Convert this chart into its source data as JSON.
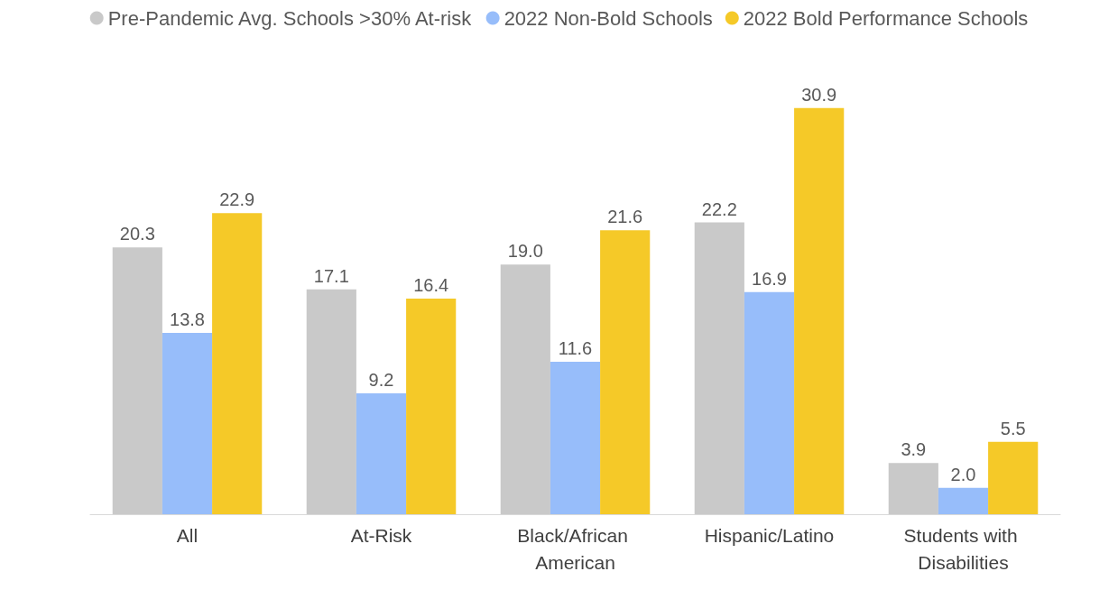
{
  "chart_data": {
    "type": "bar",
    "categories": [
      "All",
      "At-Risk",
      "Black/African American",
      "Hispanic/Latino",
      "Students with Disabilities"
    ],
    "series": [
      {
        "name": "Pre-Pandemic Avg. Schools >30% At-risk",
        "color": "#c9c9c9",
        "values": [
          20.3,
          17.1,
          19.0,
          22.2,
          3.9
        ],
        "value_labels": [
          "20.3",
          "17.1",
          "19.0",
          "22.2",
          "3.9"
        ]
      },
      {
        "name": "2022 Non-Bold Schools",
        "color": "#97bdfa",
        "values": [
          13.8,
          9.2,
          11.6,
          16.9,
          2.0
        ],
        "value_labels": [
          "13.8",
          "9.2",
          "11.6",
          "16.9",
          "2.0"
        ]
      },
      {
        "name": "2022 Bold Performance Schools",
        "color": "#f5c928",
        "values": [
          22.9,
          16.4,
          21.6,
          30.9,
          5.5
        ],
        "value_labels": [
          "22.9",
          "16.4",
          "21.6",
          "30.9",
          "5.5"
        ]
      }
    ],
    "legend": "top",
    "grid": false
  }
}
